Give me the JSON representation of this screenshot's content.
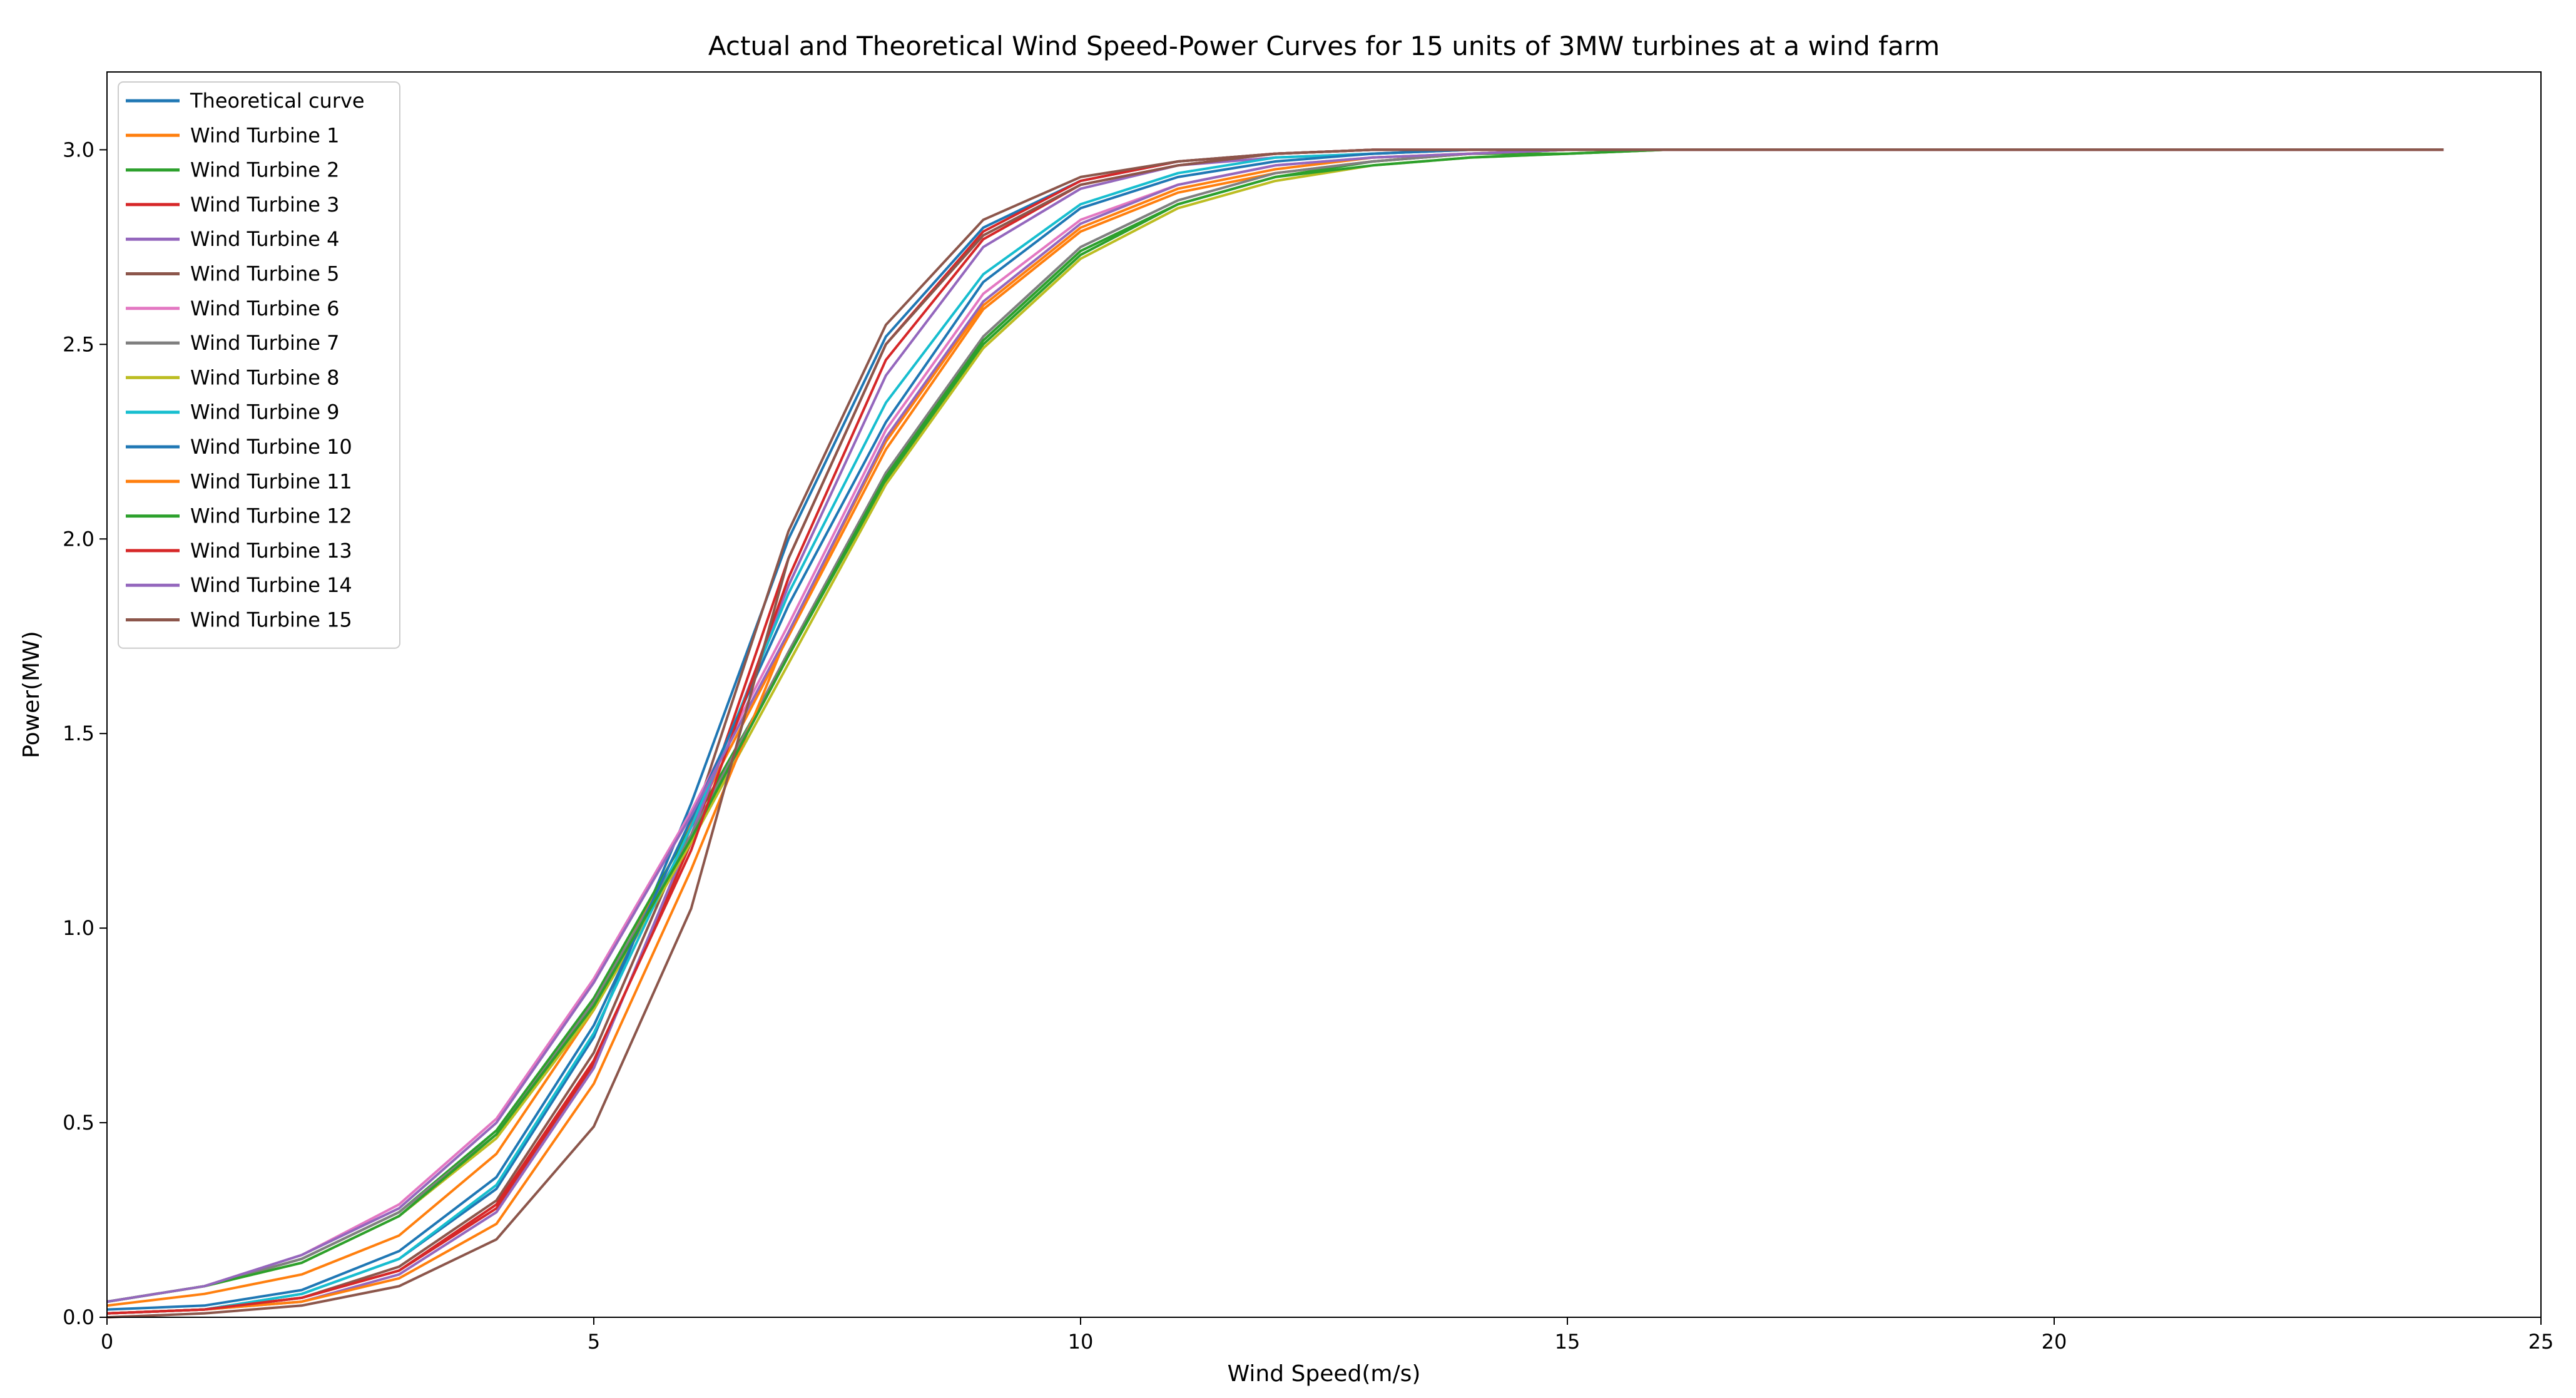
{
  "chart_data": {
    "type": "line",
    "title": "Actual and Theoretical Wind Speed-Power Curves for 15 units of 3MW turbines at a wind farm",
    "xlabel": "Wind Speed(m/s)",
    "ylabel": "Power(MW)",
    "xlim": [
      0,
      25
    ],
    "ylim": [
      0,
      3.2
    ],
    "xticks": [
      0,
      5,
      10,
      15,
      20,
      25
    ],
    "yticks": [
      0.0,
      0.5,
      1.0,
      1.5,
      2.0,
      2.5,
      3.0
    ],
    "xtick_labels": [
      "0",
      "5",
      "10",
      "15",
      "20",
      "25"
    ],
    "ytick_labels": [
      "0.0",
      "0.5",
      "1.0",
      "1.5",
      "2.0",
      "2.5",
      "3.0"
    ],
    "grid": false,
    "legend_position": "top-left",
    "x": [
      0,
      1,
      2,
      3,
      4,
      5,
      6,
      7,
      8,
      9,
      10,
      11,
      12,
      13,
      14,
      15,
      16,
      17,
      18,
      19,
      20,
      21,
      22,
      23,
      24
    ],
    "series": [
      {
        "name": "Theoretical curve",
        "color": "#1f77b4",
        "values": [
          0.01,
          0.02,
          0.06,
          0.15,
          0.33,
          0.72,
          1.32,
          2.0,
          2.52,
          2.8,
          2.92,
          2.97,
          2.99,
          3.0,
          3.0,
          3.0,
          3.0,
          3.0,
          3.0,
          3.0,
          3.0,
          3.0,
          3.0,
          3.0,
          3.0
        ]
      },
      {
        "name": "Wind Turbine 1",
        "color": "#ff7f0e",
        "values": [
          0.03,
          0.06,
          0.11,
          0.21,
          0.42,
          0.79,
          1.27,
          1.75,
          2.23,
          2.59,
          2.79,
          2.89,
          2.94,
          2.97,
          2.99,
          3.0,
          3.0,
          3.0,
          3.0,
          3.0,
          3.0,
          3.0,
          3.0,
          3.0,
          3.0
        ]
      },
      {
        "name": "Wind Turbine 2",
        "color": "#2ca02c",
        "values": [
          0.04,
          0.08,
          0.15,
          0.27,
          0.48,
          0.82,
          1.26,
          1.7,
          2.15,
          2.5,
          2.73,
          2.86,
          2.93,
          2.97,
          2.99,
          2.99,
          3.0,
          3.0,
          3.0,
          3.0,
          3.0,
          3.0,
          3.0,
          3.0,
          3.0
        ]
      },
      {
        "name": "Wind Turbine 3",
        "color": "#d62728",
        "values": [
          0.01,
          0.02,
          0.05,
          0.12,
          0.28,
          0.65,
          1.22,
          1.95,
          2.5,
          2.79,
          2.92,
          2.97,
          2.99,
          3.0,
          3.0,
          3.0,
          3.0,
          3.0,
          3.0,
          3.0,
          3.0,
          3.0,
          3.0,
          3.0,
          3.0
        ]
      },
      {
        "name": "Wind Turbine 4",
        "color": "#9467bd",
        "values": [
          0.01,
          0.02,
          0.04,
          0.11,
          0.27,
          0.64,
          1.24,
          1.88,
          2.42,
          2.75,
          2.9,
          2.96,
          2.98,
          2.99,
          3.0,
          3.0,
          3.0,
          3.0,
          3.0,
          3.0,
          3.0,
          3.0,
          3.0,
          3.0,
          3.0
        ]
      },
      {
        "name": "Wind Turbine 5",
        "color": "#8c564b",
        "values": [
          0.01,
          0.02,
          0.05,
          0.13,
          0.3,
          0.68,
          1.26,
          2.02,
          2.55,
          2.82,
          2.93,
          2.97,
          2.99,
          3.0,
          3.0,
          3.0,
          3.0,
          3.0,
          3.0,
          3.0,
          3.0,
          3.0,
          3.0,
          3.0,
          3.0
        ]
      },
      {
        "name": "Wind Turbine 6",
        "color": "#e377c2",
        "values": [
          0.04,
          0.08,
          0.16,
          0.29,
          0.51,
          0.87,
          1.3,
          1.78,
          2.28,
          2.63,
          2.82,
          2.91,
          2.96,
          2.98,
          2.99,
          3.0,
          3.0,
          3.0,
          3.0,
          3.0,
          3.0,
          3.0,
          3.0,
          3.0,
          3.0
        ]
      },
      {
        "name": "Wind Turbine 7",
        "color": "#7f7f7f",
        "values": [
          0.04,
          0.08,
          0.15,
          0.27,
          0.47,
          0.81,
          1.24,
          1.71,
          2.17,
          2.52,
          2.75,
          2.87,
          2.94,
          2.97,
          2.99,
          3.0,
          3.0,
          3.0,
          3.0,
          3.0,
          3.0,
          3.0,
          3.0,
          3.0,
          3.0
        ]
      },
      {
        "name": "Wind Turbine 8",
        "color": "#bcbd22",
        "values": [
          0.04,
          0.08,
          0.14,
          0.26,
          0.46,
          0.79,
          1.22,
          1.68,
          2.14,
          2.49,
          2.72,
          2.85,
          2.92,
          2.96,
          2.98,
          2.99,
          3.0,
          3.0,
          3.0,
          3.0,
          3.0,
          3.0,
          3.0,
          3.0,
          3.0
        ]
      },
      {
        "name": "Wind Turbine 9",
        "color": "#17becf",
        "values": [
          0.01,
          0.02,
          0.06,
          0.15,
          0.34,
          0.73,
          1.26,
          1.86,
          2.35,
          2.68,
          2.86,
          2.94,
          2.98,
          2.99,
          3.0,
          3.0,
          3.0,
          3.0,
          3.0,
          3.0,
          3.0,
          3.0,
          3.0,
          3.0,
          3.0
        ]
      },
      {
        "name": "Wind Turbine 10",
        "color": "#1f77b4",
        "values": [
          0.02,
          0.03,
          0.07,
          0.17,
          0.36,
          0.75,
          1.28,
          1.83,
          2.3,
          2.66,
          2.85,
          2.93,
          2.97,
          2.99,
          3.0,
          3.0,
          3.0,
          3.0,
          3.0,
          3.0,
          3.0,
          3.0,
          3.0,
          3.0,
          3.0
        ]
      },
      {
        "name": "Wind Turbine 11",
        "color": "#ff7f0e",
        "values": [
          0.01,
          0.02,
          0.04,
          0.1,
          0.24,
          0.6,
          1.15,
          1.76,
          2.25,
          2.6,
          2.8,
          2.9,
          2.95,
          2.98,
          2.99,
          3.0,
          3.0,
          3.0,
          3.0,
          3.0,
          3.0,
          3.0,
          3.0,
          3.0,
          3.0
        ]
      },
      {
        "name": "Wind Turbine 12",
        "color": "#2ca02c",
        "values": [
          0.04,
          0.08,
          0.14,
          0.26,
          0.47,
          0.8,
          1.23,
          1.7,
          2.16,
          2.51,
          2.74,
          2.86,
          2.93,
          2.96,
          2.98,
          2.99,
          3.0,
          3.0,
          3.0,
          3.0,
          3.0,
          3.0,
          3.0,
          3.0,
          3.0
        ]
      },
      {
        "name": "Wind Turbine 13",
        "color": "#d62728",
        "values": [
          0.01,
          0.02,
          0.05,
          0.12,
          0.29,
          0.66,
          1.2,
          1.9,
          2.46,
          2.77,
          2.91,
          2.96,
          2.99,
          3.0,
          3.0,
          3.0,
          3.0,
          3.0,
          3.0,
          3.0,
          3.0,
          3.0,
          3.0,
          3.0,
          3.0
        ]
      },
      {
        "name": "Wind Turbine 14",
        "color": "#9467bd",
        "values": [
          0.04,
          0.08,
          0.16,
          0.28,
          0.5,
          0.86,
          1.29,
          1.76,
          2.26,
          2.61,
          2.81,
          2.91,
          2.96,
          2.98,
          2.99,
          3.0,
          3.0,
          3.0,
          3.0,
          3.0,
          3.0,
          3.0,
          3.0,
          3.0,
          3.0
        ]
      },
      {
        "name": "Wind Turbine 15",
        "color": "#8c564b",
        "values": [
          0.0,
          0.01,
          0.03,
          0.08,
          0.2,
          0.49,
          1.05,
          1.95,
          2.5,
          2.78,
          2.91,
          2.96,
          2.99,
          3.0,
          3.0,
          3.0,
          3.0,
          3.0,
          3.0,
          3.0,
          3.0,
          3.0,
          3.0,
          3.0,
          3.0
        ]
      }
    ]
  }
}
